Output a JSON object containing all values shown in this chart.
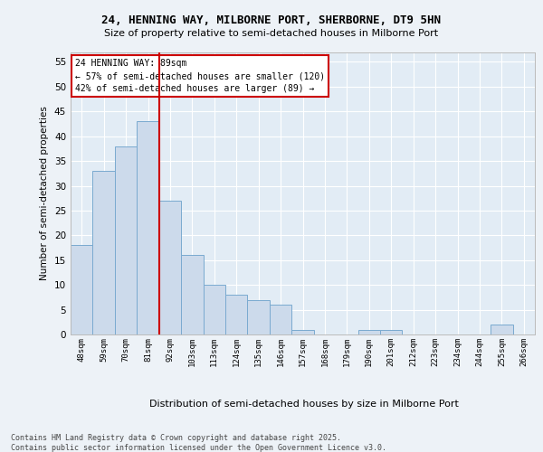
{
  "title1": "24, HENNING WAY, MILBORNE PORT, SHERBORNE, DT9 5HN",
  "title2": "Size of property relative to semi-detached houses in Milborne Port",
  "xlabel": "Distribution of semi-detached houses by size in Milborne Port",
  "ylabel": "Number of semi-detached properties",
  "categories": [
    "48sqm",
    "59sqm",
    "70sqm",
    "81sqm",
    "92sqm",
    "103sqm",
    "113sqm",
    "124sqm",
    "135sqm",
    "146sqm",
    "157sqm",
    "168sqm",
    "179sqm",
    "190sqm",
    "201sqm",
    "212sqm",
    "223sqm",
    "234sqm",
    "244sqm",
    "255sqm",
    "266sqm"
  ],
  "values": [
    18,
    33,
    38,
    43,
    27,
    16,
    10,
    8,
    7,
    6,
    1,
    0,
    0,
    1,
    1,
    0,
    0,
    0,
    0,
    2,
    0
  ],
  "bar_color": "#ccdaeb",
  "bar_edge_color": "#7aaad0",
  "vline_color": "#cc0000",
  "annotation_title": "24 HENNING WAY: 89sqm",
  "annotation_line1": "← 57% of semi-detached houses are smaller (120)",
  "annotation_line2": "42% of semi-detached houses are larger (89) →",
  "annotation_box_edgecolor": "#cc0000",
  "ylim": [
    0,
    57
  ],
  "yticks": [
    0,
    5,
    10,
    15,
    20,
    25,
    30,
    35,
    40,
    45,
    50,
    55
  ],
  "footer1": "Contains HM Land Registry data © Crown copyright and database right 2025.",
  "footer2": "Contains public sector information licensed under the Open Government Licence v3.0.",
  "bg_color": "#edf2f7",
  "plot_bg_color": "#e2ecf5"
}
